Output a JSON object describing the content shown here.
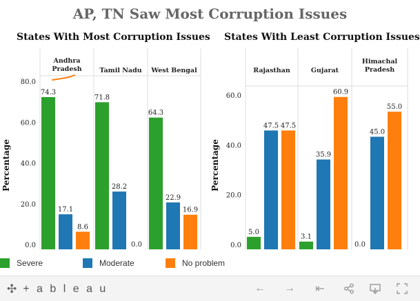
{
  "title": "AP, TN Saw Most Corruption Issues",
  "colors": {
    "Severe": "#2ca02c",
    "Moderate": "#1f77b4",
    "No problem": "#ff7f0e"
  },
  "chart_data": [
    {
      "type": "bar",
      "title": "States With Most Corruption Issues",
      "ylabel": "Percentage",
      "ylim": [
        0,
        82
      ],
      "yticks": [
        "0.0",
        "20.0",
        "40.0",
        "60.0",
        "80.0"
      ],
      "categories": [
        "Andhra Pradesh",
        "Tamil Nadu",
        "West Bengal"
      ],
      "series": [
        {
          "name": "Severe",
          "values": [
            74.3,
            71.8,
            64.3
          ],
          "labels": [
            "74.3",
            "71.8",
            "64.3"
          ]
        },
        {
          "name": "Moderate",
          "values": [
            17.1,
            28.2,
            22.9
          ],
          "labels": [
            "17.1",
            "28.2",
            "22.9"
          ]
        },
        {
          "name": "No problem",
          "values": [
            8.6,
            0.0,
            16.9
          ],
          "labels": [
            "8.6",
            "0.0",
            "16.9"
          ]
        }
      ]
    },
    {
      "type": "bar",
      "title": "States With Least Corruption Issues",
      "ylabel": "Percentage",
      "ylim": [
        0,
        66
      ],
      "yticks": [
        "0.0",
        "20.0",
        "40.0",
        "60.0"
      ],
      "categories": [
        "Rajasthan",
        "Gujarat",
        "Himachal Pradesh"
      ],
      "series": [
        {
          "name": "Severe",
          "values": [
            5.0,
            3.1,
            0.0
          ],
          "labels": [
            "5.0",
            "3.1",
            "0.0"
          ]
        },
        {
          "name": "Moderate",
          "values": [
            47.5,
            35.9,
            45.0
          ],
          "labels": [
            "47.5",
            "35.9",
            "45.0"
          ]
        },
        {
          "name": "No problem",
          "values": [
            47.5,
            60.9,
            55.0
          ],
          "labels": [
            "47.5",
            "60.9",
            "55.0"
          ]
        }
      ]
    }
  ],
  "legend": [
    {
      "label": "Severe"
    },
    {
      "label": "Moderate"
    },
    {
      "label": "No problem"
    }
  ],
  "footer": {
    "brand": "+ a b l e a u",
    "icons": [
      "undo-icon",
      "redo-icon",
      "revert-icon",
      "share-icon",
      "download-icon",
      "fullscreen-icon"
    ]
  }
}
